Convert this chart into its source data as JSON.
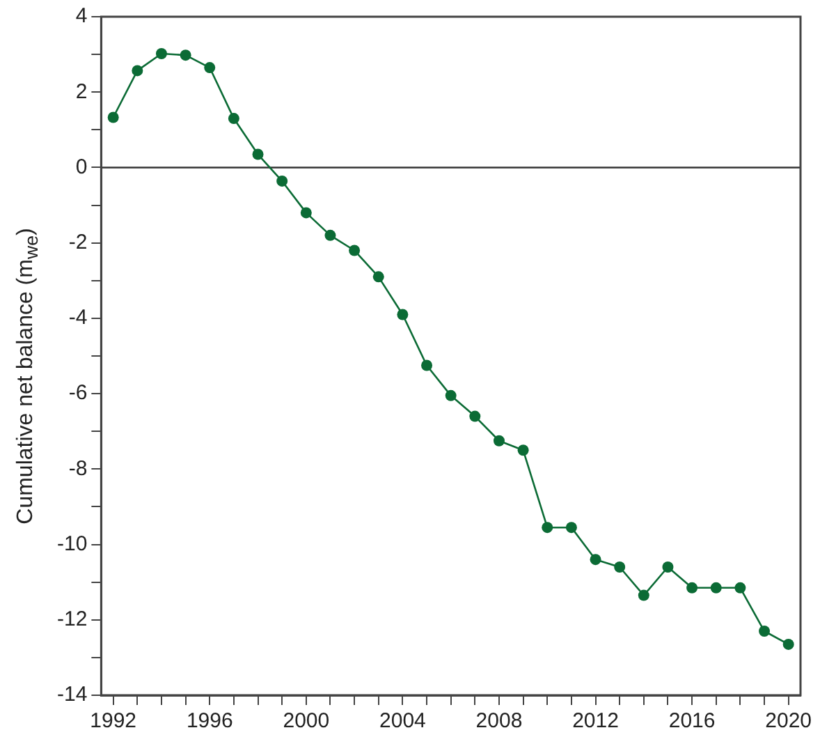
{
  "chart_data": {
    "type": "line",
    "ylabel": "Cumulative net balance (m$_{we}$)",
    "x": [
      1992,
      1993,
      1994,
      1995,
      1996,
      1997,
      1998,
      1999,
      2000,
      2001,
      2002,
      2003,
      2004,
      2005,
      2006,
      2007,
      2008,
      2009,
      2010,
      2011,
      2012,
      2013,
      2014,
      2015,
      2016,
      2017,
      2018,
      2019,
      2020
    ],
    "series": [
      {
        "color": "#0b6b35",
        "values": [
          1.33,
          2.57,
          3.02,
          2.98,
          2.65,
          1.3,
          0.35,
          -0.36,
          -1.2,
          -1.8,
          -2.2,
          -2.9,
          -3.9,
          -5.25,
          -6.05,
          -6.6,
          -7.25,
          -7.5,
          -9.55,
          -9.55,
          -10.4,
          -10.6,
          -11.35,
          -10.6,
          -11.15,
          -11.15,
          -11.15,
          -12.3,
          -12.65
        ]
      }
    ],
    "xlim": [
      1991.5,
      2020.5
    ],
    "xticks": [
      1992,
      {
        "value": 1993,
        "label": null
      },
      {
        "value": 1994,
        "label": null
      },
      {
        "value": 1995,
        "label": null
      },
      1996,
      {
        "value": 1997,
        "label": null
      },
      {
        "value": 1998,
        "label": null
      },
      {
        "value": 1999,
        "label": null
      },
      2000,
      {
        "value": 2001,
        "label": null
      },
      {
        "value": 2002,
        "label": null
      },
      {
        "value": 2003,
        "label": null
      },
      2004,
      {
        "value": 2005,
        "label": null
      },
      {
        "value": 2006,
        "label": null
      },
      {
        "value": 2007,
        "label": null
      },
      2008,
      {
        "value": 2009,
        "label": null
      },
      {
        "value": 2010,
        "label": null
      },
      {
        "value": 2011,
        "label": null
      },
      2012,
      {
        "value": 2013,
        "label": null
      },
      {
        "value": 2014,
        "label": null
      },
      {
        "value": 2015,
        "label": null
      },
      2016,
      {
        "value": 2017,
        "label": null
      },
      {
        "value": 2018,
        "label": null
      },
      {
        "value": 2019,
        "label": null
      },
      2020
    ],
    "ylim": [
      -14,
      4
    ],
    "yticks": [
      -14,
      {
        "value": -13,
        "label": null
      },
      -12,
      {
        "value": -11,
        "label": null
      },
      -10,
      {
        "value": -9,
        "label": null
      },
      -8,
      {
        "value": -7,
        "label": null
      },
      -6,
      {
        "value": -5,
        "label": null
      },
      -4,
      {
        "value": -3,
        "label": null
      },
      -2,
      {
        "value": -1,
        "label": null
      },
      0,
      {
        "value": 1,
        "label": null
      },
      2,
      {
        "value": 3,
        "label": null
      },
      4
    ],
    "ref_lines": [
      {
        "axis": "y",
        "value": 0,
        "color": "#333333"
      }
    ],
    "grid": false,
    "legend": false,
    "marker": "circle",
    "line_style": "solid"
  }
}
